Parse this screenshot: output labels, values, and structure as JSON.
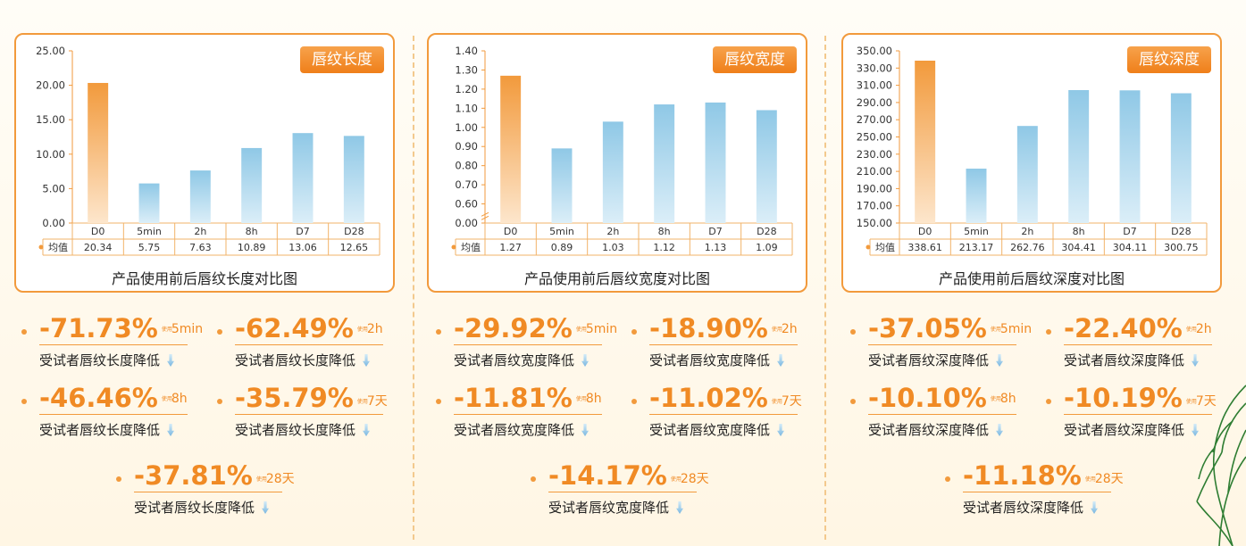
{
  "chart_data": [
    {
      "type": "bar",
      "badge": "唇纹长度",
      "title": "产品使用前后唇纹长度对比图",
      "categories": [
        "D0",
        "5min",
        "2h",
        "8h",
        "D7",
        "D28"
      ],
      "values": [
        20.34,
        5.75,
        7.63,
        10.89,
        13.06,
        12.65
      ],
      "row_label": "均值",
      "value_labels": [
        "20.34",
        "5.75",
        "7.63",
        "10.89",
        "13.06",
        "12.65"
      ],
      "yticks": [
        "25.00",
        "20.00",
        "15.00",
        "10.00",
        "5.00",
        "0.00"
      ],
      "ylim": [
        0,
        25
      ],
      "colors": {
        "baseline": "#f29a3c",
        "after": "#8fc8e6"
      }
    },
    {
      "type": "bar",
      "badge": "唇纹宽度",
      "title": "产品使用前后唇纹宽度对比图",
      "categories": [
        "D0",
        "5min",
        "2h",
        "8h",
        "D7",
        "D28"
      ],
      "values": [
        1.27,
        0.89,
        1.03,
        1.12,
        1.13,
        1.09
      ],
      "row_label": "均值",
      "value_labels": [
        "1.27",
        "0.89",
        "1.03",
        "1.12",
        "1.13",
        "1.09"
      ],
      "yticks": [
        "1.40",
        "1.30",
        "1.20",
        "1.10",
        "1.00",
        "0.90",
        "0.80",
        "0.70",
        "0.60",
        "0.00"
      ],
      "ylim": [
        0,
        1.4
      ],
      "broken_axis": "0.00 to 0.60",
      "colors": {
        "baseline": "#f29a3c",
        "after": "#8fc8e6"
      }
    },
    {
      "type": "bar",
      "badge": "唇纹深度",
      "title": "产品使用前后唇纹深度对比图",
      "categories": [
        "D0",
        "5min",
        "2h",
        "8h",
        "D7",
        "D28"
      ],
      "values": [
        338.61,
        213.17,
        262.76,
        304.41,
        304.11,
        300.75
      ],
      "row_label": "均值",
      "value_labels": [
        "338.61",
        "213.17",
        "262.76",
        "304.41",
        "304.11",
        "300.75"
      ],
      "yticks": [
        "350.00",
        "330.00",
        "310.00",
        "290.00",
        "270.00",
        "250.00",
        "230.00",
        "210.00",
        "190.00",
        "170.00",
        "150.00"
      ],
      "ylim": [
        150,
        350
      ],
      "colors": {
        "baseline": "#f29a3c",
        "after": "#8fc8e6"
      }
    }
  ],
  "stats": [
    [
      {
        "pct": "-71.73%",
        "mini": "使用",
        "time": "5min",
        "desc": "受试者唇纹长度降低"
      },
      {
        "pct": "-62.49%",
        "mini": "使用",
        "time": "2h",
        "desc": "受试者唇纹长度降低"
      },
      {
        "pct": "-46.46%",
        "mini": "使用",
        "time": "8h",
        "desc": "受试者唇纹长度降低"
      },
      {
        "pct": "-35.79%",
        "mini": "使用",
        "time": "7天",
        "desc": "受试者唇纹长度降低"
      },
      {
        "pct": "-37.81%",
        "mini": "使用",
        "time": "28天",
        "desc": "受试者唇纹长度降低"
      }
    ],
    [
      {
        "pct": "-29.92%",
        "mini": "使用",
        "time": "5min",
        "desc": "受试者唇纹宽度降低"
      },
      {
        "pct": "-18.90%",
        "mini": "使用",
        "time": "2h",
        "desc": "受试者唇纹宽度降低"
      },
      {
        "pct": "-11.81%",
        "mini": "使用",
        "time": "8h",
        "desc": "受试者唇纹宽度降低"
      },
      {
        "pct": "-11.02%",
        "mini": "使用",
        "time": "7天",
        "desc": "受试者唇纹宽度降低"
      },
      {
        "pct": "-14.17%",
        "mini": "使用",
        "time": "28天",
        "desc": "受试者唇纹宽度降低"
      }
    ],
    [
      {
        "pct": "-37.05%",
        "mini": "使用",
        "time": "5min",
        "desc": "受试者唇纹深度降低"
      },
      {
        "pct": "-22.40%",
        "mini": "使用",
        "time": "2h",
        "desc": "受试者唇纹深度降低"
      },
      {
        "pct": "-10.10%",
        "mini": "使用",
        "time": "8h",
        "desc": "受试者唇纹深度降低"
      },
      {
        "pct": "-10.19%",
        "mini": "使用",
        "time": "7天",
        "desc": "受试者唇纹深度降低"
      },
      {
        "pct": "-11.18%",
        "mini": "使用",
        "time": "28天",
        "desc": "受试者唇纹深度降低"
      }
    ]
  ]
}
